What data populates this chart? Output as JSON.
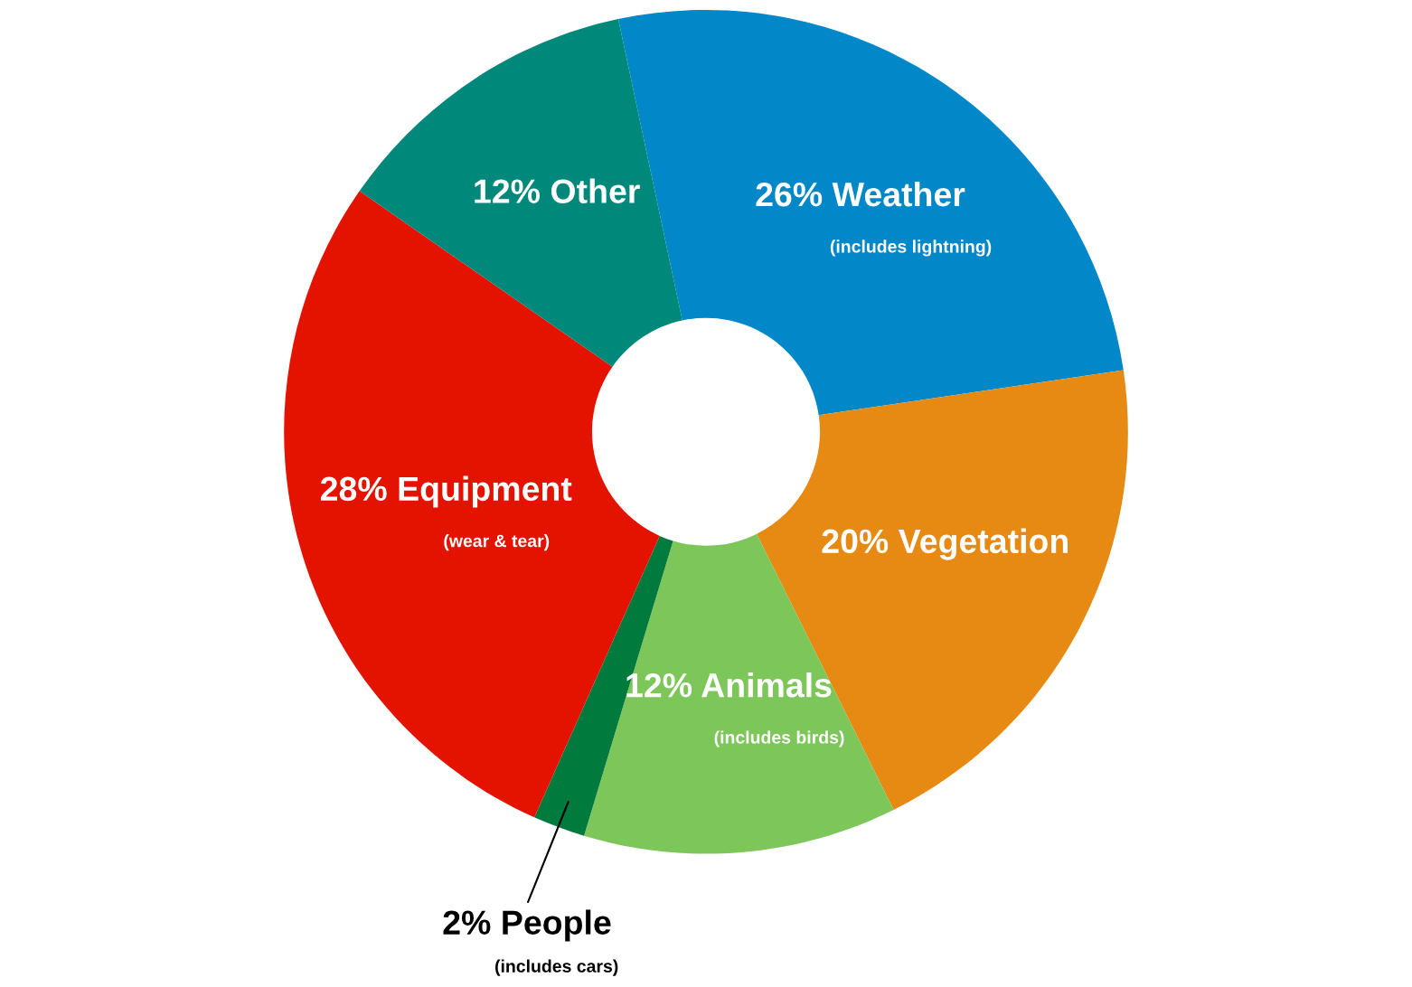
{
  "chart_data": {
    "type": "donut",
    "categories": [
      "Weather",
      "Vegetation",
      "Animals",
      "People",
      "Equipment",
      "Other"
    ],
    "values": [
      26,
      20,
      12,
      2,
      28,
      12
    ],
    "colors": [
      "#0288c8",
      "#e68a14",
      "#7dc75a",
      "#007a3d",
      "#e41300",
      "#00897a"
    ],
    "value_labels": [
      "26%",
      "20%",
      "12%",
      "2%",
      "28%",
      "12%"
    ],
    "annotations": [
      {
        "text": "(includes lightning)",
        "x": "Weather"
      },
      {
        "text": "(includes birds)",
        "x": "Animals"
      },
      {
        "text": "(includes cars)",
        "x": "People"
      },
      {
        "text": "(wear & tear)",
        "x": "Equipment"
      }
    ],
    "legend": false
  }
}
